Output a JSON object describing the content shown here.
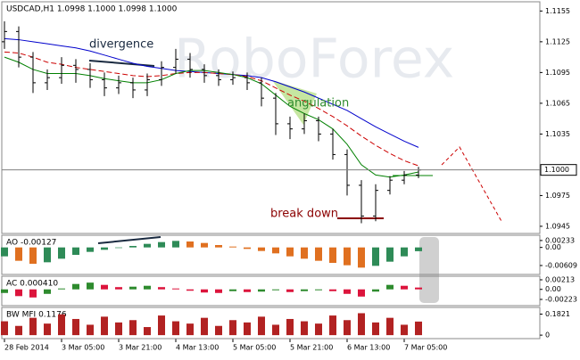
{
  "watermark": "RoboForex",
  "chart_data": [
    {
      "type": "ohlc",
      "title": "USDCAD,H1  1.0998 1.1000 1.0998 1.1000",
      "categories": [
        "28 Feb 2014",
        null,
        null,
        null,
        "3 Mar 05:00",
        null,
        null,
        null,
        "3 Mar 21:00",
        null,
        null,
        null,
        "4 Mar 13:00",
        null,
        null,
        null,
        "5 Mar 05:00",
        null,
        null,
        null,
        "5 Mar 21:00",
        null,
        null,
        null,
        "6 Mar 13:00",
        null,
        null,
        null,
        "7 Mar 05:00",
        null
      ],
      "open": [
        1.1125,
        1.1135,
        1.111,
        1.1085,
        1.109,
        1.1102,
        1.1098,
        1.1088,
        1.108,
        1.1085,
        1.1078,
        1.1088,
        1.11,
        1.1108,
        1.1098,
        1.1092,
        1.1088,
        1.109,
        1.1085,
        1.107,
        1.1045,
        1.104,
        1.1048,
        1.1035,
        1.1015,
        1.0985,
        1.0955,
        1.098,
        1.099,
        1.0995
      ],
      "high": [
        1.1145,
        1.114,
        1.1115,
        1.1098,
        1.111,
        1.1108,
        1.1104,
        1.1095,
        1.1092,
        1.109,
        1.1094,
        1.1106,
        1.1118,
        1.1114,
        1.1103,
        1.1098,
        1.1096,
        1.1095,
        1.109,
        1.1075,
        1.1052,
        1.1055,
        1.1052,
        1.104,
        1.102,
        1.099,
        1.0986,
        1.0994,
        1.0999,
        1.1003
      ],
      "low": [
        1.1118,
        1.11,
        1.1075,
        1.1078,
        1.1084,
        1.1085,
        1.108,
        1.1072,
        1.1074,
        1.107,
        1.1072,
        1.1082,
        1.1094,
        1.109,
        1.1085,
        1.1082,
        1.1083,
        1.1078,
        1.1062,
        1.1034,
        1.103,
        1.1035,
        1.1028,
        1.101,
        1.0975,
        1.0948,
        1.095,
        1.0976,
        1.0986,
        1.0992
      ],
      "close": [
        1.1135,
        1.111,
        1.1085,
        1.109,
        1.1102,
        1.1098,
        1.1088,
        1.108,
        1.1085,
        1.1078,
        1.1088,
        1.11,
        1.1108,
        1.1098,
        1.1092,
        1.1088,
        1.109,
        1.1085,
        1.107,
        1.1045,
        1.104,
        1.1048,
        1.1035,
        1.1015,
        1.0985,
        1.0955,
        1.098,
        1.099,
        1.0995,
        1.1
      ],
      "color": "#000000",
      "series": [
        {
          "color": "#0000cc",
          "values": [
            1.1128,
            1.1127,
            1.1125,
            1.1123,
            1.1121,
            1.1119,
            1.1116,
            1.1112,
            1.1108,
            1.1104,
            1.1101,
            1.1099,
            1.1097,
            1.1096,
            1.1095,
            1.1094,
            1.1093,
            1.1092,
            1.109,
            1.1086,
            1.1081,
            1.1076,
            1.107,
            1.1064,
            1.1058,
            1.105,
            1.1042,
            1.1035,
            1.1028,
            1.1022
          ]
        },
        {
          "color": "#cc0000",
          "dash": true,
          "values": [
            1.1115,
            1.1114,
            1.111,
            1.1105,
            1.1103,
            1.11,
            1.1098,
            1.1096,
            1.1094,
            1.1092,
            1.1091,
            1.1092,
            1.1094,
            1.1095,
            1.1095,
            1.1094,
            1.1093,
            1.1091,
            1.1087,
            1.108,
            1.1073,
            1.1067,
            1.106,
            1.1052,
            1.1043,
            1.1033,
            1.1024,
            1.1016,
            1.1009,
            1.1004
          ]
        },
        {
          "color": "#008000",
          "values": [
            1.111,
            1.1105,
            1.1098,
            1.1094,
            1.1094,
            1.1094,
            1.1092,
            1.1089,
            1.1087,
            1.1085,
            1.1085,
            1.1088,
            1.1094,
            1.1097,
            1.1097,
            1.1095,
            1.1093,
            1.109,
            1.1084,
            1.1073,
            1.1062,
            1.1055,
            1.1049,
            1.104,
            1.1025,
            1.1005,
            1.0995,
            1.0993,
            1.0995,
            1.0998
          ]
        }
      ],
      "ylim": [
        1.0938,
        1.1164
      ],
      "yticks": [
        1.1155,
        1.1125,
        1.1095,
        1.1065,
        1.1035,
        1.0975,
        1.0945
      ],
      "current_price": {
        "value": 1.1,
        "label": "1.1000"
      },
      "annotations": [
        "divergence",
        "angulation",
        "break down"
      ]
    },
    {
      "type": "bar",
      "title": "AO -0.00127",
      "up_color": "#2e8b57",
      "down_color": "#e07020",
      "values": [
        -0.003,
        -0.0045,
        -0.0055,
        -0.005,
        -0.0038,
        -0.0025,
        -0.0015,
        -0.0008,
        -0.0002,
        0.0005,
        0.0012,
        0.0018,
        0.0022,
        0.002,
        0.0015,
        0.0008,
        0.0003,
        -0.0005,
        -0.0012,
        -0.002,
        -0.003,
        -0.0038,
        -0.0045,
        -0.0052,
        -0.006,
        -0.0068,
        -0.0062,
        -0.0048,
        -0.003,
        -0.00127
      ],
      "ylim": [
        -0.0091,
        0.0041
      ],
      "yticks": [
        0.00233,
        {
          "value": 0,
          "label": "0.00"
        },
        -0.00609
      ]
    },
    {
      "type": "bar",
      "title": "AC 0.000410",
      "up_color": "#2e8b2e",
      "down_color": "#dc143c",
      "values": [
        -0.0008,
        -0.0015,
        -0.0018,
        -0.001,
        0.0002,
        0.0012,
        0.0015,
        0.001,
        0.0005,
        0.0006,
        0.0008,
        0.0005,
        0.0002,
        -0.0003,
        -0.0007,
        -0.0008,
        -0.0004,
        -0.0006,
        -0.0005,
        -0.0002,
        -0.0006,
        -0.0004,
        -0.0002,
        -0.0004,
        -0.001,
        -0.0016,
        -0.0005,
        0.001,
        0.0008,
        0.00041
      ],
      "ylim": [
        -0.00362,
        0.00292
      ],
      "yticks": [
        0.00213,
        {
          "value": 0,
          "label": "0.00"
        },
        -0.00223
      ]
    },
    {
      "type": "bar",
      "title": "BW MFI 0.1176",
      "color": "#b22222",
      "values": [
        0.12,
        0.08,
        0.15,
        0.1,
        0.18,
        0.14,
        0.09,
        0.16,
        0.11,
        0.13,
        0.07,
        0.17,
        0.12,
        0.1,
        0.15,
        0.08,
        0.13,
        0.11,
        0.16,
        0.09,
        0.14,
        0.12,
        0.1,
        0.17,
        0.13,
        0.19,
        0.11,
        0.15,
        0.09,
        0.1176
      ],
      "ylim": [
        -0.03,
        0.24
      ],
      "yticks": [
        0.1821,
        0
      ]
    }
  ]
}
